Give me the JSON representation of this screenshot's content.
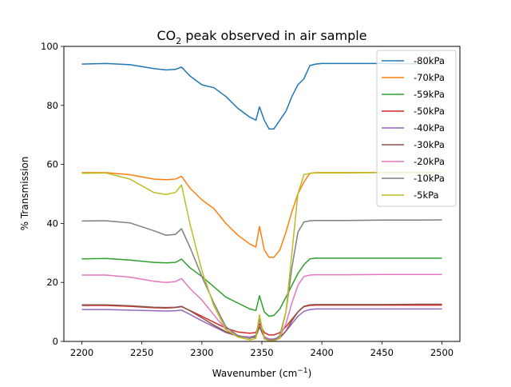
{
  "chart_data": {
    "type": "line",
    "title_prefix": "CO",
    "title_sub": "2",
    "title_suffix": " peak observed in air sample",
    "xlabel_prefix": "Wavenumber (cm",
    "xlabel_sup": "−1",
    "xlabel_suffix": ")",
    "ylabel": "% Transmission",
    "xlim": [
      2185,
      2515
    ],
    "ylim": [
      0,
      100
    ],
    "xticks": [
      2200,
      2250,
      2300,
      2350,
      2400,
      2450,
      2500
    ],
    "yticks": [
      0,
      20,
      40,
      60,
      80,
      100
    ],
    "grid": false,
    "legend_position": "top-right",
    "x": [
      2200,
      2220,
      2240,
      2260,
      2270,
      2278,
      2283,
      2290,
      2300,
      2310,
      2320,
      2330,
      2340,
      2345,
      2348,
      2352,
      2356,
      2360,
      2365,
      2370,
      2375,
      2380,
      2385,
      2390,
      2395,
      2400,
      2420,
      2450,
      2480,
      2500
    ],
    "series": [
      {
        "name": "-80kPa",
        "color": "#1f77b4",
        "values": [
          94,
          94.2,
          93.8,
          92.5,
          92,
          92.2,
          93,
          90,
          87,
          86,
          83,
          79,
          76,
          75,
          79.5,
          75,
          72,
          72,
          75,
          78,
          83,
          87,
          89,
          93.5,
          94,
          94.2,
          94.2,
          94.2,
          94.1,
          94
        ]
      },
      {
        "name": "-70kPa",
        "color": "#ff7f0e",
        "values": [
          57.2,
          57.2,
          56.5,
          55,
          54.8,
          55,
          56,
          52,
          48,
          45,
          40,
          36,
          33,
          32,
          39,
          31,
          28.5,
          28.5,
          31,
          37,
          44,
          50,
          54,
          57,
          57.2,
          57.2,
          57.2,
          57.3,
          57.3,
          57.3
        ]
      },
      {
        "name": "-59kPa",
        "color": "#2ca02c",
        "values": [
          28,
          28.1,
          27.6,
          26.8,
          26.6,
          26.8,
          27.9,
          25,
          22,
          18.5,
          15,
          13,
          11,
          10.5,
          15.5,
          10,
          8.5,
          8.8,
          11,
          15,
          19,
          23,
          26,
          28,
          28.2,
          28.2,
          28.2,
          28.2,
          28.2,
          28.2
        ]
      },
      {
        "name": "-50kPa",
        "color": "#d62728",
        "values": [
          12.2,
          12.2,
          11.9,
          11.4,
          11.3,
          11.5,
          11.8,
          10.5,
          8.5,
          6.5,
          4.5,
          3.2,
          2.8,
          3,
          6,
          3,
          2.2,
          2.2,
          3,
          5,
          7.5,
          10,
          11.8,
          12.2,
          12.3,
          12.3,
          12.3,
          12.3,
          12.3,
          12.3
        ]
      },
      {
        "name": "-40kPa",
        "color": "#9467bd",
        "values": [
          10.8,
          10.8,
          10.6,
          10.4,
          10.3,
          10.4,
          10.6,
          9.2,
          7,
          5,
          3,
          1.8,
          1.5,
          2,
          5,
          1.6,
          0.8,
          0.8,
          1.5,
          3.5,
          6,
          8.5,
          10.2,
          10.8,
          11,
          11,
          11,
          11,
          11,
          11
        ]
      },
      {
        "name": "-30kPa",
        "color": "#8c564b",
        "values": [
          12.4,
          12.4,
          12.1,
          11.6,
          11.5,
          11.6,
          11.9,
          10.4,
          8,
          5.5,
          3.3,
          1.8,
          1.2,
          1.5,
          5,
          1.2,
          0.5,
          0.5,
          1.2,
          3.5,
          7,
          10,
          11.9,
          12.4,
          12.5,
          12.5,
          12.5,
          12.5,
          12.6,
          12.6
        ]
      },
      {
        "name": "-20kPa",
        "color": "#e377c2",
        "values": [
          22.5,
          22.5,
          21.8,
          20.4,
          20,
          20.3,
          21.3,
          18,
          14,
          9,
          4,
          2,
          1.2,
          2,
          7.5,
          1.5,
          0.4,
          0.4,
          1.5,
          6,
          13,
          19,
          22,
          22.5,
          22.6,
          22.6,
          22.6,
          22.7,
          22.7,
          22.7
        ]
      },
      {
        "name": "-10kPa",
        "color": "#7f7f7f",
        "values": [
          40.8,
          40.9,
          40.2,
          37.5,
          36,
          36.3,
          38.2,
          32,
          22,
          13,
          5,
          2,
          1,
          2,
          8,
          1.2,
          0.3,
          0.3,
          2,
          10,
          25,
          37,
          40.5,
          40.9,
          41,
          41,
          41,
          41.1,
          41.1,
          41.2
        ]
      },
      {
        "name": "-5kPa",
        "color": "#bcbd22",
        "values": [
          57,
          57.1,
          55,
          50.5,
          49.8,
          50.5,
          53,
          40,
          24,
          12,
          4,
          1.5,
          0.5,
          1,
          9,
          0.8,
          0.2,
          0.2,
          1,
          10,
          30,
          50,
          56.5,
          57,
          57.1,
          57.1,
          57.1,
          57.2,
          57.2,
          57.2
        ]
      }
    ]
  }
}
